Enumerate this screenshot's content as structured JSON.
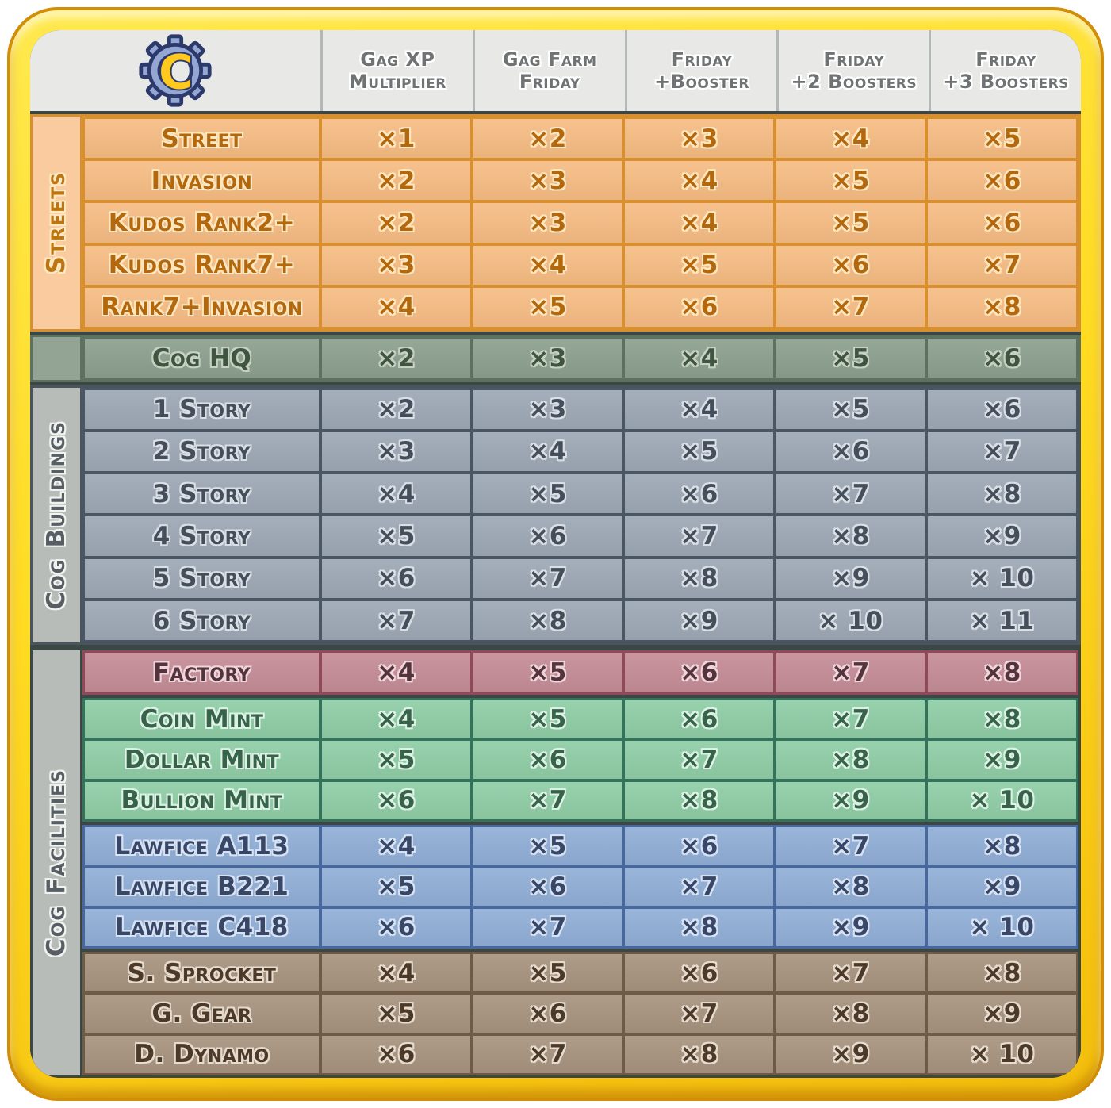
{
  "header": {
    "logo_letter": "C",
    "columns": [
      {
        "line1": "Gag XP",
        "line2": "Multiplier"
      },
      {
        "line1": "Gag Farm",
        "line2": "Friday"
      },
      {
        "line1": "Friday",
        "line2": "+Booster"
      },
      {
        "line1": "Friday",
        "line2": "+2 Boosters"
      },
      {
        "line1": "Friday",
        "line2": "+3 Boosters"
      }
    ]
  },
  "sections": [
    {
      "id": "streets",
      "label": "Streets",
      "blocks": [
        {
          "theme": "streets",
          "rows": [
            {
              "name": "Street",
              "values": [
                "×1",
                "×2",
                "×3",
                "×4",
                "×5"
              ]
            },
            {
              "name": "Invasion",
              "values": [
                "×2",
                "×3",
                "×4",
                "×5",
                "×6"
              ]
            },
            {
              "name": "Kudos Rank2+",
              "values": [
                "×2",
                "×3",
                "×4",
                "×5",
                "×6"
              ]
            },
            {
              "name": "Kudos Rank7+",
              "values": [
                "×3",
                "×4",
                "×5",
                "×6",
                "×7"
              ]
            },
            {
              "name": "Rank7+Invasion",
              "values": [
                "×4",
                "×5",
                "×6",
                "×7",
                "×8"
              ]
            }
          ]
        }
      ]
    },
    {
      "id": "coghq",
      "label": "",
      "blocks": [
        {
          "theme": "coghq",
          "rows": [
            {
              "name": "Cog HQ",
              "values": [
                "×2",
                "×3",
                "×4",
                "×5",
                "×6"
              ]
            }
          ]
        }
      ]
    },
    {
      "id": "cog-buildings",
      "label": "Cog Buildings",
      "blocks": [
        {
          "theme": "buildings",
          "rows": [
            {
              "name": "1 Story",
              "values": [
                "×2",
                "×3",
                "×4",
                "×5",
                "×6"
              ]
            },
            {
              "name": "2 Story",
              "values": [
                "×3",
                "×4",
                "×5",
                "×6",
                "×7"
              ]
            },
            {
              "name": "3 Story",
              "values": [
                "×4",
                "×5",
                "×6",
                "×7",
                "×8"
              ]
            },
            {
              "name": "4 Story",
              "values": [
                "×5",
                "×6",
                "×7",
                "×8",
                "×9"
              ]
            },
            {
              "name": "5 Story",
              "values": [
                "×6",
                "×7",
                "×8",
                "×9",
                "× 10"
              ]
            },
            {
              "name": "6 Story",
              "values": [
                "×7",
                "×8",
                "×9",
                "× 10",
                "× 11"
              ]
            }
          ]
        }
      ]
    },
    {
      "id": "cog-facilities",
      "label": "Cog Facilities",
      "blocks": [
        {
          "theme": "factory",
          "rows": [
            {
              "name": "Factory",
              "values": [
                "×4",
                "×5",
                "×6",
                "×7",
                "×8"
              ]
            }
          ]
        },
        {
          "theme": "mint",
          "rows": [
            {
              "name": "Coin Mint",
              "values": [
                "×4",
                "×5",
                "×6",
                "×7",
                "×8"
              ]
            },
            {
              "name": "Dollar Mint",
              "values": [
                "×5",
                "×6",
                "×7",
                "×8",
                "×9"
              ]
            },
            {
              "name": "Bullion Mint",
              "values": [
                "×6",
                "×7",
                "×8",
                "×9",
                "× 10"
              ]
            }
          ]
        },
        {
          "theme": "lawfice",
          "rows": [
            {
              "name": "Lawfice A113",
              "values": [
                "×4",
                "×5",
                "×6",
                "×7",
                "×8"
              ]
            },
            {
              "name": "Lawfice B221",
              "values": [
                "×5",
                "×6",
                "×7",
                "×8",
                "×9"
              ]
            },
            {
              "name": "Lawfice C418",
              "values": [
                "×6",
                "×7",
                "×8",
                "×9",
                "× 10"
              ]
            }
          ]
        },
        {
          "theme": "boss",
          "rows": [
            {
              "name": "S. Sprocket",
              "values": [
                "×4",
                "×5",
                "×6",
                "×7",
                "×8"
              ]
            },
            {
              "name": "G. Gear",
              "values": [
                "×5",
                "×6",
                "×7",
                "×8",
                "×9"
              ]
            },
            {
              "name": "D. Dynamo",
              "values": [
                "×6",
                "×7",
                "×8",
                "×9",
                "× 10"
              ]
            }
          ]
        }
      ]
    }
  ],
  "colors": {
    "frame_yellow": "#ffdb22",
    "frame_rim": "#d28e06",
    "table_gap": "#3b4744",
    "header_bg": "#e8e8e6",
    "header_text": "#6f7374",
    "streets_bg": "#f7bd85",
    "coghq_bg": "#8da18f",
    "buildings_bg": "#9ea9b6",
    "factory_bg": "#c68d98",
    "mint_bg": "#90cea7",
    "lawfice_bg": "#92afd7",
    "boss_bg": "#a8947f",
    "logo_gear": "#94a7d4",
    "logo_letter": "#ffc91f",
    "logo_outline": "#2c3a6b"
  }
}
